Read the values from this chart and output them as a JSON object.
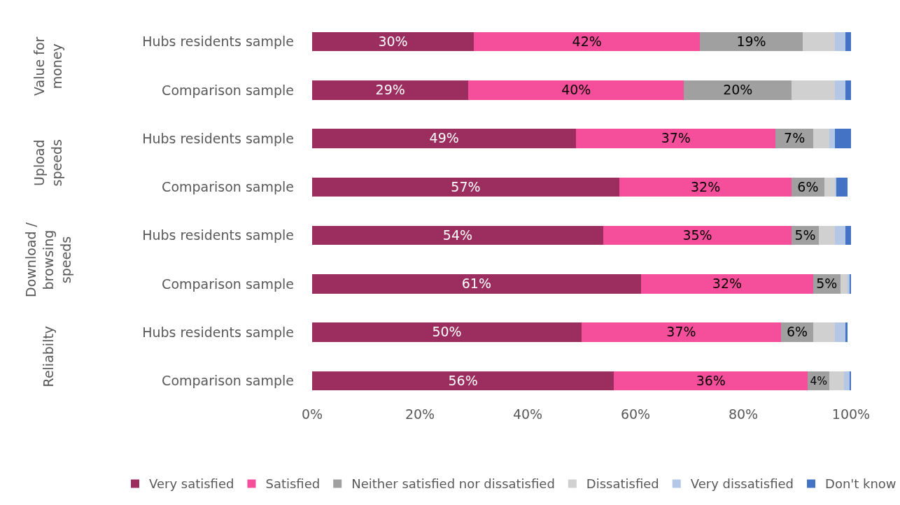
{
  "chart_data": {
    "type": "bar",
    "orientation": "horizontal",
    "stacked": true,
    "categories": [
      "Hubs residents sample",
      "Comparison sample",
      "Hubs residents sample",
      "Comparison sample",
      "Hubs residents sample",
      "Comparison sample",
      "Hubs residents sample",
      "Comparison sample"
    ],
    "annotations": [
      "Value for\nmoney",
      "Upload\nspeeds",
      "Download /\nbrowsing\nspeeds",
      "Reliabilty"
    ],
    "series": [
      {
        "name": "Very satisfied",
        "color": "#9b2d5f",
        "values": [
          30,
          29,
          49,
          57,
          54,
          61,
          50,
          56
        ],
        "value_labels": [
          "30%",
          "29%",
          "49%",
          "57%",
          "54%",
          "61%",
          "50%",
          "56%"
        ]
      },
      {
        "name": "Satisfied",
        "color": "#f54f9b",
        "values": [
          42,
          40,
          37,
          32,
          35,
          32,
          37,
          36
        ],
        "value_labels": [
          "42%",
          "40%",
          "37%",
          "32%",
          "35%",
          "32%",
          "37%",
          "36%"
        ]
      },
      {
        "name": "Neither satisfied nor dissatisfied",
        "color": "#a0a0a0",
        "values": [
          19,
          20,
          7,
          6,
          5,
          5,
          6,
          4
        ],
        "value_labels": [
          "19%",
          "20%",
          "7%",
          "6%",
          "5%",
          "5%",
          "6%",
          "4%"
        ]
      },
      {
        "name": "Dissatisfied",
        "color": "#d0d0d0",
        "values": [
          6,
          8,
          3,
          2,
          3,
          1.4,
          4,
          2.7
        ]
      },
      {
        "name": "Very dissatisfied",
        "color": "#b4c7e7",
        "values": [
          2,
          2,
          1,
          0.3,
          2,
          0.3,
          2,
          1
        ]
      },
      {
        "name": "Don't know",
        "color": "#4472c4",
        "values": [
          1,
          1,
          3,
          2,
          1,
          0.3,
          0.3,
          0.3
        ]
      }
    ],
    "xlim": [
      0,
      100
    ],
    "xticks": [
      {
        "value": 0,
        "label": "0%"
      },
      {
        "value": 20,
        "label": "20%"
      },
      {
        "value": 40,
        "label": "40%"
      },
      {
        "value": 60,
        "label": "60%"
      },
      {
        "value": 80,
        "label": "80%"
      },
      {
        "value": 100,
        "label": "100%"
      }
    ],
    "legend": "bottom"
  }
}
